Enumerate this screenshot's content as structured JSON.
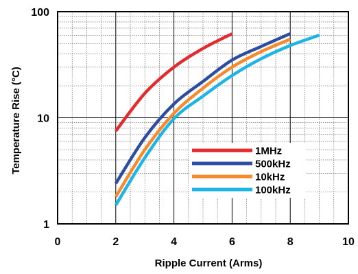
{
  "chart_data": {
    "type": "line",
    "xlabel": "Ripple Current (Arms)",
    "ylabel": "Temperature Rise (°C)",
    "xlim": [
      0,
      10
    ],
    "ylim": [
      1,
      100
    ],
    "yscale": "log",
    "grid": true,
    "minor_grid": true,
    "legend_position": "bottom-right",
    "x_ticks": [
      "0",
      "2",
      "4",
      "6",
      "8",
      "10"
    ],
    "y_ticks": [
      "1",
      "10",
      "100"
    ],
    "series": [
      {
        "name": "1MHz",
        "color": "#e32b2f",
        "x": [
          2,
          3,
          4,
          5,
          6
        ],
        "y": [
          7.5,
          17,
          30,
          45,
          62
        ]
      },
      {
        "name": "500kHz",
        "color": "#2c4da1",
        "x": [
          2,
          3,
          4,
          5,
          6,
          7,
          8
        ],
        "y": [
          2.4,
          6.5,
          13.5,
          22,
          35,
          47,
          62
        ]
      },
      {
        "name": "10kHz",
        "color": "#f58b2c",
        "x": [
          2,
          3,
          4,
          5,
          6,
          7,
          8
        ],
        "y": [
          1.8,
          5,
          11,
          19,
          30,
          42,
          55
        ]
      },
      {
        "name": "100kHz",
        "color": "#1fb4e6",
        "x": [
          2,
          3,
          4,
          5,
          6,
          7,
          8,
          9
        ],
        "y": [
          1.5,
          4.2,
          9.8,
          16,
          25,
          36,
          48,
          60
        ]
      }
    ]
  }
}
